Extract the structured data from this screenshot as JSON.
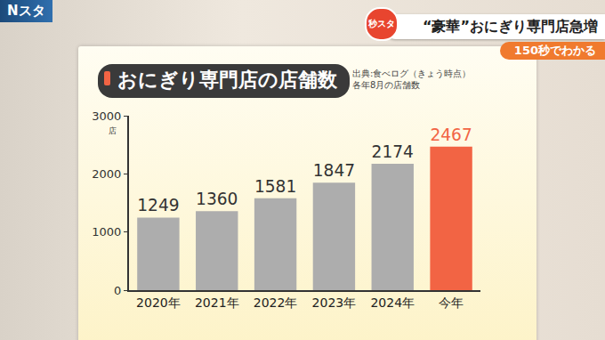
{
  "screen": {
    "program": "Nスタ",
    "logo": "秒スタ",
    "headline": "“豪華”おにぎり専門店急増",
    "segment": "150秒でわかる"
  },
  "chart_data": {
    "type": "bar",
    "title": "おにぎり専門店の店舗数",
    "annotations": [
      "出典:食べログ（きょう時点）",
      "各年8月の店舗数"
    ],
    "ylabel": "店",
    "categories": [
      "2020年",
      "2021年",
      "2022年",
      "2023年",
      "2024年",
      "今年"
    ],
    "values": [
      1249,
      1360,
      1581,
      1847,
      2174,
      2467
    ],
    "colors": [
      "#adadad",
      "#adadad",
      "#adadad",
      "#adadad",
      "#adadad",
      "#f26444"
    ],
    "ylim": [
      0,
      3000
    ],
    "yticks": [
      0,
      1000,
      2000,
      3000
    ],
    "data_labels": true,
    "grid": false
  }
}
